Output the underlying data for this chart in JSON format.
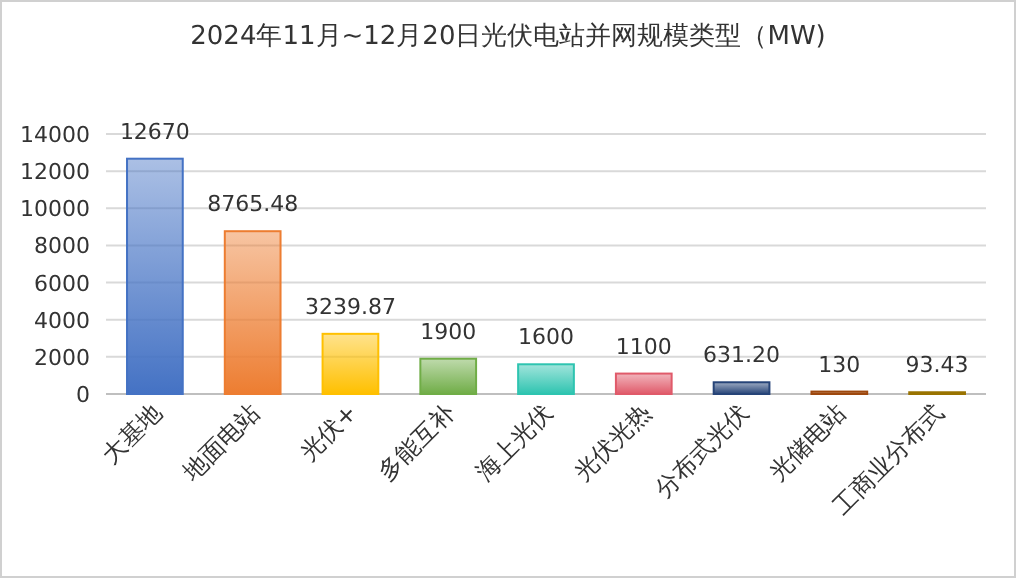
{
  "chart_data": {
    "type": "bar",
    "title": "2024年11月~12月20日光伏电站并网规模类型（MW)",
    "categories": [
      "大基地",
      "地面电站",
      "光伏+",
      "多能互补",
      "海上光伏",
      "光伏光热",
      "分布式光伏",
      "光储电站",
      "工商业分布式"
    ],
    "values": [
      12670,
      8765.48,
      3239.87,
      1900,
      1600,
      1100,
      631.2,
      130,
      93.43
    ],
    "value_labels": [
      "12670",
      "8765.48",
      "3239.87",
      "1900",
      "1600",
      "1100",
      "631.20",
      "130",
      "93.43"
    ],
    "colors": [
      "#4472c4",
      "#ed7d31",
      "#ffc000",
      "#70ad47",
      "#2ec4b0",
      "#e05a6a",
      "#264478",
      "#9e480e",
      "#997300"
    ],
    "ylim": [
      0,
      14000
    ],
    "yticks": [
      0,
      2000,
      4000,
      6000,
      8000,
      10000,
      12000,
      14000
    ],
    "grid": "y"
  }
}
